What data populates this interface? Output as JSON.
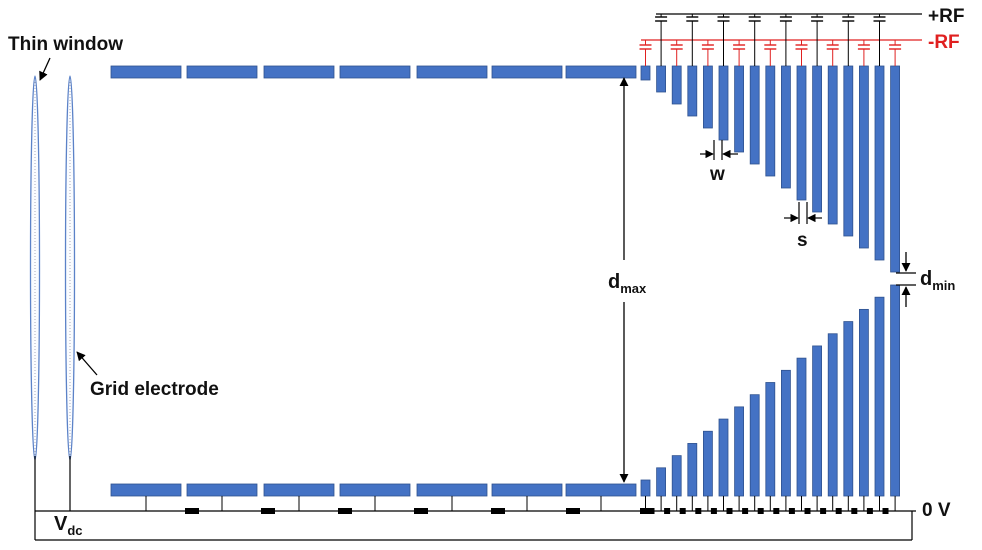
{
  "labels": {
    "thin_window": "Thin window",
    "grid_electrode": "Grid electrode",
    "plus_rf": "+RF",
    "minus_rf": "-RF",
    "zero_v": "0 V",
    "vdc_main": "V",
    "vdc_sub": "dc",
    "w": "w",
    "s": "s",
    "dmax_main": "d",
    "dmax_sub": "max",
    "dmin_main": "d",
    "dmin_sub": "min"
  },
  "colors": {
    "electrode": "#4472c4",
    "electrode_edge": "#2f528f",
    "minus_rf": "#e02020",
    "wire": "#000000"
  }
}
